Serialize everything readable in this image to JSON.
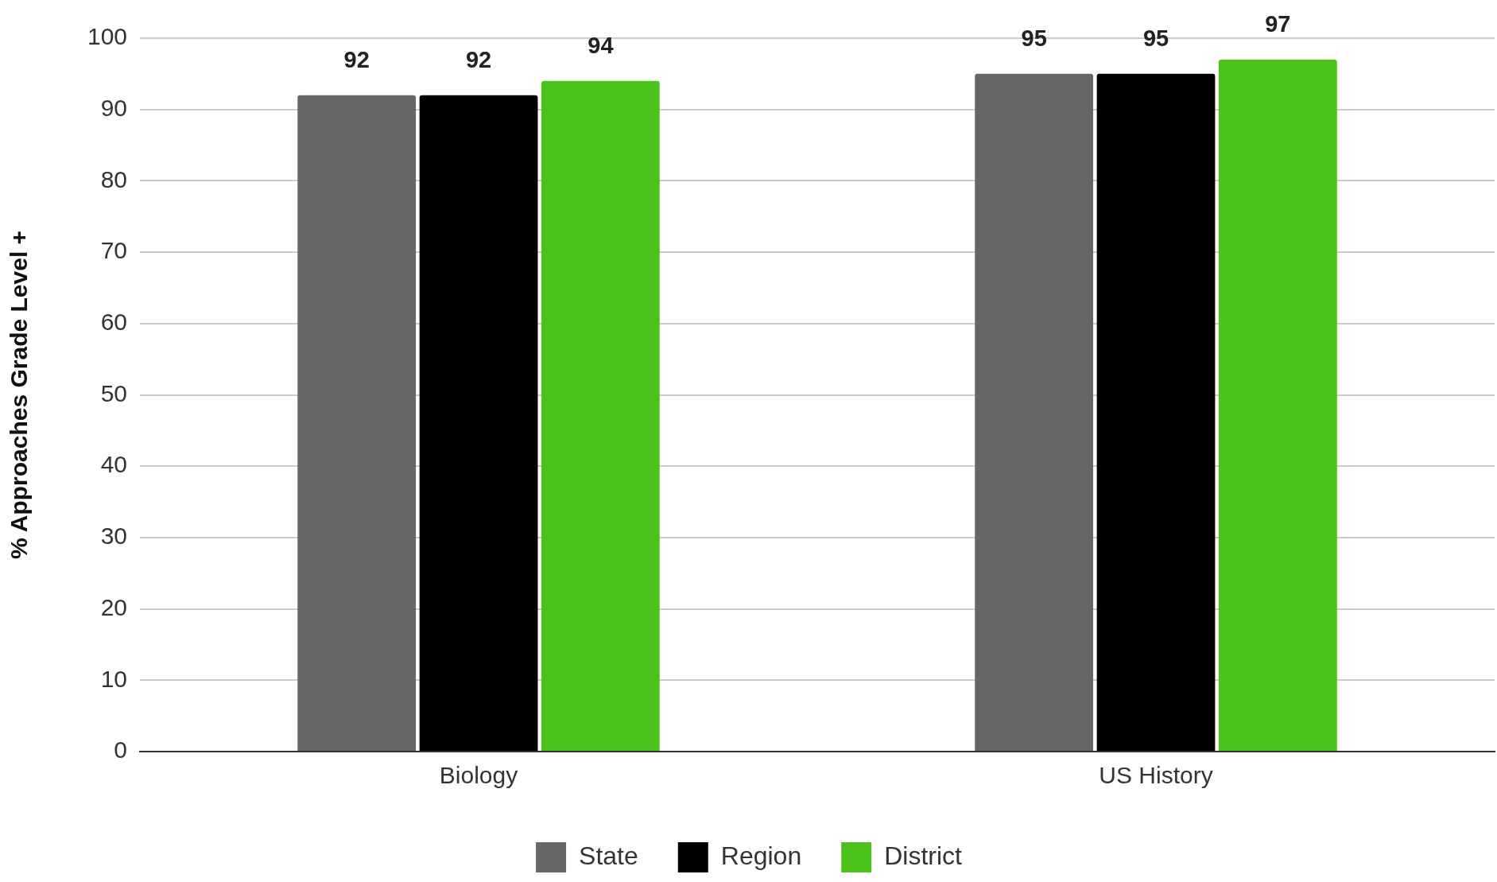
{
  "chart_data": {
    "type": "bar",
    "ylabel": "% Approaches Grade Level +",
    "categories": [
      "Biology",
      "US History"
    ],
    "series": [
      {
        "name": "State",
        "color": "#666666",
        "values": [
          92,
          95
        ]
      },
      {
        "name": "Region",
        "color": "#000000",
        "values": [
          92,
          95
        ]
      },
      {
        "name": "District",
        "color": "#4cc31a",
        "values": [
          94,
          97
        ]
      }
    ],
    "ylim": [
      0,
      100
    ],
    "yticks": [
      0,
      10,
      20,
      30,
      40,
      50,
      60,
      70,
      80,
      90,
      100
    ],
    "grid": "y",
    "legend": "bottom",
    "data_labels": true
  }
}
